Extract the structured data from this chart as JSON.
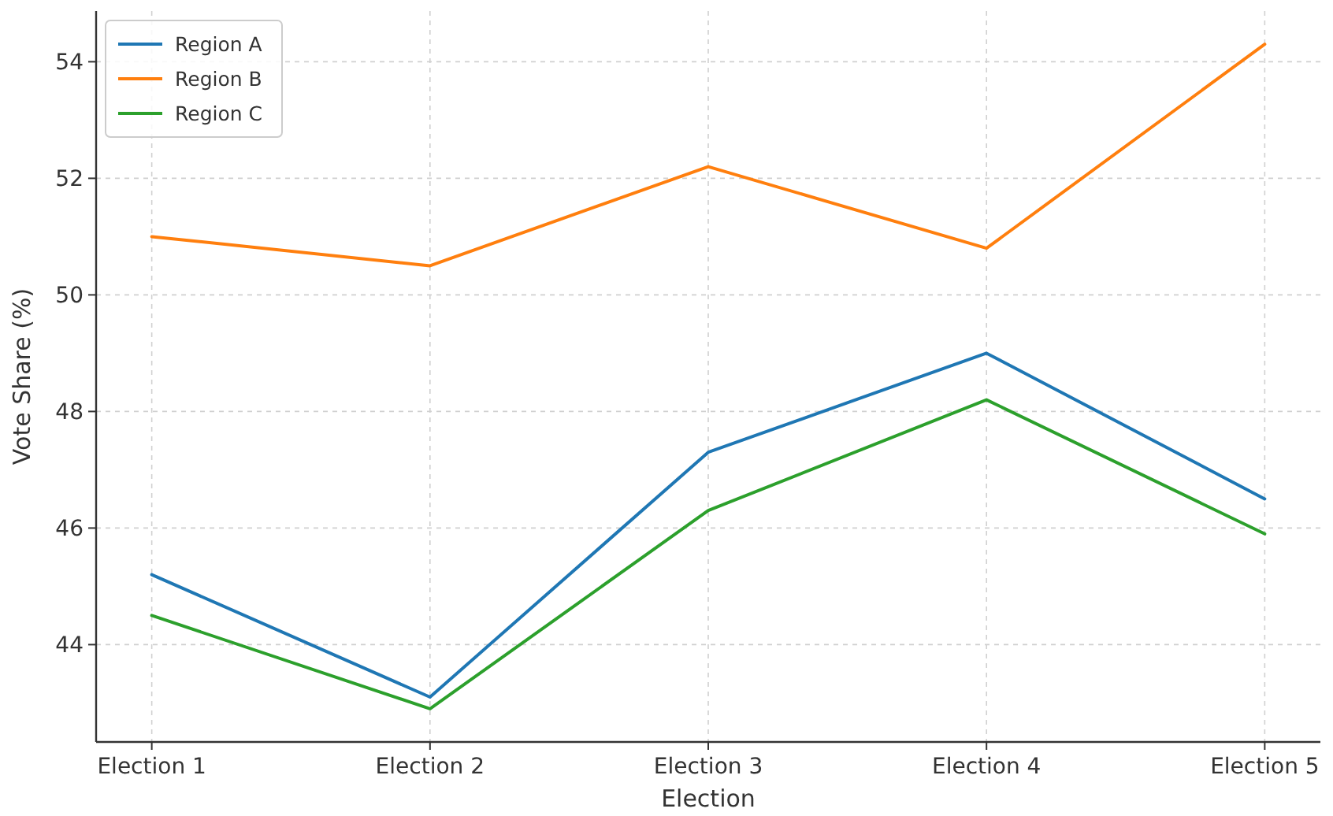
{
  "chart_data": {
    "type": "line",
    "xlabel": "Election",
    "ylabel": "Vote Share (%)",
    "categories": [
      "Election 1",
      "Election 2",
      "Election 3",
      "Election 4",
      "Election 5"
    ],
    "series": [
      {
        "name": "Region A",
        "color": "#1f77b4",
        "values": [
          45.2,
          43.1,
          47.3,
          49.0,
          46.5
        ]
      },
      {
        "name": "Region B",
        "color": "#ff7f0e",
        "values": [
          51.0,
          50.5,
          52.2,
          50.8,
          54.3
        ]
      },
      {
        "name": "Region C",
        "color": "#2ca02c",
        "values": [
          44.5,
          42.9,
          46.3,
          48.2,
          45.9
        ]
      }
    ],
    "ylim": [
      42.33,
      54.87
    ],
    "yticks": [
      44,
      46,
      48,
      50,
      52,
      54
    ],
    "grid": true,
    "legend": "top left",
    "marker": "none",
    "line_style": "solid"
  }
}
